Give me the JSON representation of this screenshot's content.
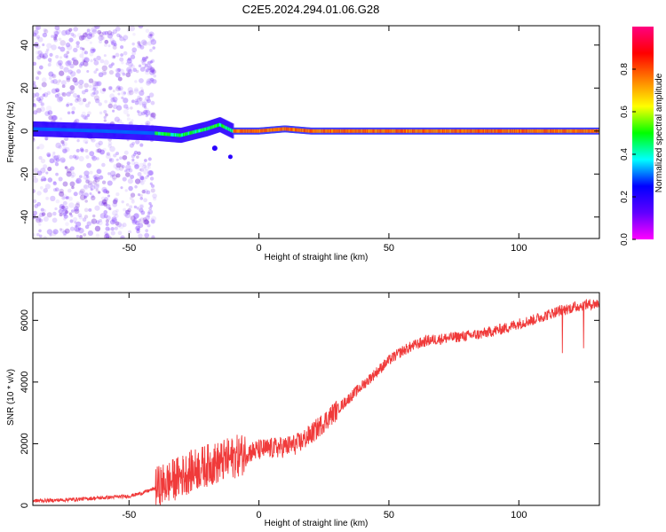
{
  "title": "C2E5.2024.294.01.06.G28",
  "colors": {
    "snr_line": "#f03a3a",
    "background": "#ffffff",
    "axis": "#000000"
  },
  "chart_data": [
    {
      "type": "heatmap",
      "xlabel": "Height of straight line (km)",
      "ylabel": "Frequency (Hz)",
      "xlim": [
        -87,
        131
      ],
      "ylim": [
        -50,
        49
      ],
      "xticks": [
        -50,
        0,
        50,
        100
      ],
      "yticks": [
        -40,
        -20,
        0,
        20,
        40
      ],
      "grid": false,
      "colorbar": {
        "label": "Normalized spectral amplitude",
        "range": [
          0.0,
          1.0
        ],
        "ticks": [
          0.0,
          0.2,
          0.4,
          0.6,
          0.8
        ],
        "colormap": [
          "#ff00ff",
          "#6000ff",
          "#0000ff",
          "#00ffff",
          "#00ff00",
          "#ffff00",
          "#ff8000",
          "#ff0000",
          "#ff0080"
        ]
      },
      "signal_trace": {
        "description_values_x": [
          -87,
          -60,
          -40,
          -30,
          -20,
          -15,
          -10,
          0,
          10,
          20,
          50,
          100,
          131
        ],
        "center_frequency_hz": [
          1,
          0,
          -1,
          -2,
          1,
          3,
          0,
          0,
          1,
          0,
          0,
          0,
          0
        ],
        "noise_scatter_xrange": [
          -87,
          -40
        ]
      }
    },
    {
      "type": "line",
      "xlabel": "Height of straight line (km)",
      "ylabel": "SNR (10 * v/v)",
      "xlim": [
        -87,
        131
      ],
      "ylim": [
        0,
        6900
      ],
      "xticks": [
        -50,
        0,
        50,
        100
      ],
      "yticks": [
        0,
        2000,
        4000,
        6000
      ],
      "grid": false,
      "series": [
        {
          "x": [
            -87,
            -80,
            -70,
            -60,
            -50,
            -45,
            -40,
            -35,
            -30,
            -25,
            -20,
            -15,
            -10,
            -5,
            0,
            5,
            10,
            15,
            20,
            25,
            30,
            35,
            40,
            45,
            50,
            55,
            60,
            65,
            70,
            75,
            80,
            85,
            90,
            95,
            100,
            105,
            110,
            115,
            120,
            125,
            131
          ],
          "y": [
            150,
            160,
            200,
            250,
            300,
            400,
            550,
            750,
            950,
            1150,
            1300,
            1400,
            1550,
            1700,
            1800,
            1850,
            1900,
            2000,
            2300,
            2700,
            3100,
            3500,
            3900,
            4300,
            4700,
            5000,
            5200,
            5350,
            5400,
            5450,
            5500,
            5550,
            5650,
            5750,
            5900,
            6000,
            6150,
            6300,
            6400,
            6500,
            6550
          ]
        }
      ]
    }
  ]
}
